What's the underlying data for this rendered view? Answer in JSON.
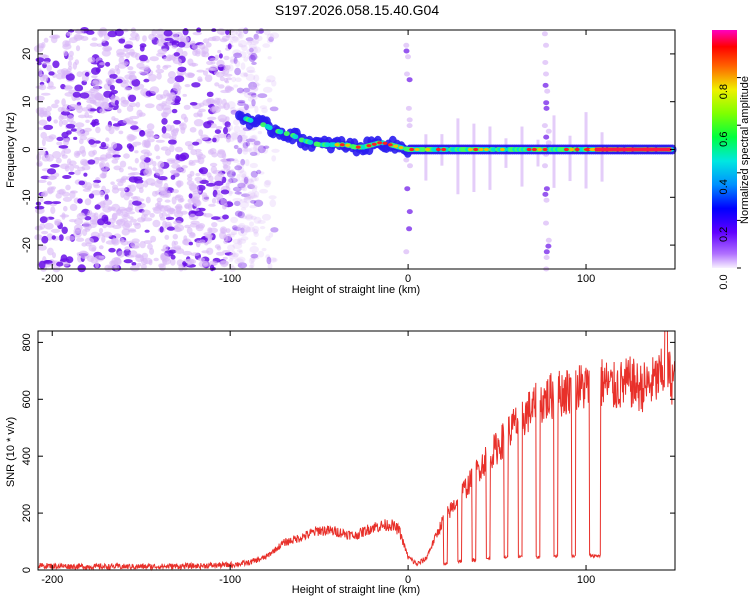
{
  "title": "S197.2026.058.15.40.G04",
  "colors": {
    "snr_line": "#e8302a",
    "track_line": "#000000",
    "scatter_light": "#d9b8f7",
    "scatter_dark": "#6a10e8"
  },
  "chart_data": [
    {
      "type": "heatmap",
      "name": "spectrogram",
      "xlabel": "Height of straight line (km)",
      "ylabel": "Frequency (Hz)",
      "xlim": [
        -208,
        150
      ],
      "ylim": [
        -25,
        25
      ],
      "xticks": [
        -200,
        -100,
        0,
        100
      ],
      "yticks": [
        -20,
        -10,
        0,
        10,
        20
      ],
      "colorbar": {
        "label": "Normalized spectral amplitude",
        "range": [
          0,
          1
        ],
        "ticks": [
          0.0,
          0.2,
          0.4,
          0.6,
          0.8
        ]
      },
      "ridge": {
        "x": [
          -95,
          -88,
          -80,
          -75,
          -70,
          -65,
          -60,
          -55,
          -50,
          -45,
          -40,
          -35,
          -30,
          -25,
          -20,
          -15,
          -10,
          -5,
          0,
          150
        ],
        "y": [
          7,
          6,
          5,
          4,
          3.5,
          3,
          2,
          1.5,
          1,
          1,
          1,
          1,
          0.5,
          0.5,
          1,
          1.5,
          1,
          0.5,
          0,
          0
        ]
      },
      "reference_line": {
        "y": 0,
        "x_start": -10,
        "x_end": 150
      },
      "vertical_streaks_x": [
        0,
        78
      ]
    },
    {
      "type": "line",
      "name": "snr",
      "xlabel": "Height of straight line (km)",
      "ylabel": "SNR (10 * v/v)",
      "xlim": [
        -208,
        150
      ],
      "ylim": [
        0,
        840
      ],
      "xticks": [
        -200,
        -100,
        0,
        100
      ],
      "yticks": [
        0,
        200,
        400,
        600,
        800
      ],
      "series": [
        {
          "name": "SNR",
          "x": [
            -208,
            -180,
            -150,
            -120,
            -100,
            -90,
            -80,
            -70,
            -60,
            -50,
            -40,
            -30,
            -20,
            -10,
            -5,
            0,
            5,
            10,
            15,
            20,
            25,
            30,
            35,
            40,
            45,
            50,
            55,
            60,
            65,
            70,
            75,
            80,
            85,
            90,
            95,
            100,
            105,
            110,
            115,
            120,
            125,
            130,
            135,
            140,
            145,
            150
          ],
          "values": [
            15,
            12,
            12,
            14,
            18,
            25,
            45,
            95,
            115,
            140,
            135,
            120,
            150,
            160,
            140,
            45,
            20,
            40,
            110,
            180,
            220,
            270,
            310,
            360,
            400,
            430,
            470,
            510,
            540,
            570,
            590,
            610,
            620,
            630,
            640,
            645,
            650,
            660,
            640,
            650,
            660,
            640,
            650,
            670,
            700,
            660
          ]
        }
      ],
      "dropouts": [
        {
          "x": [
            20,
            22
          ],
          "value": 20
        },
        {
          "x": [
            28,
            30
          ],
          "value": 30
        },
        {
          "x": [
            36,
            38
          ],
          "value": 35
        },
        {
          "x": [
            44,
            46
          ],
          "value": 40
        },
        {
          "x": [
            54,
            56
          ],
          "value": 45
        },
        {
          "x": [
            62,
            64
          ],
          "value": 45
        },
        {
          "x": [
            72,
            74
          ],
          "value": 45
        },
        {
          "x": [
            82,
            84
          ],
          "value": 50
        },
        {
          "x": [
            92,
            94
          ],
          "value": 50
        },
        {
          "x": [
            102,
            108
          ],
          "value": 50
        }
      ]
    }
  ]
}
